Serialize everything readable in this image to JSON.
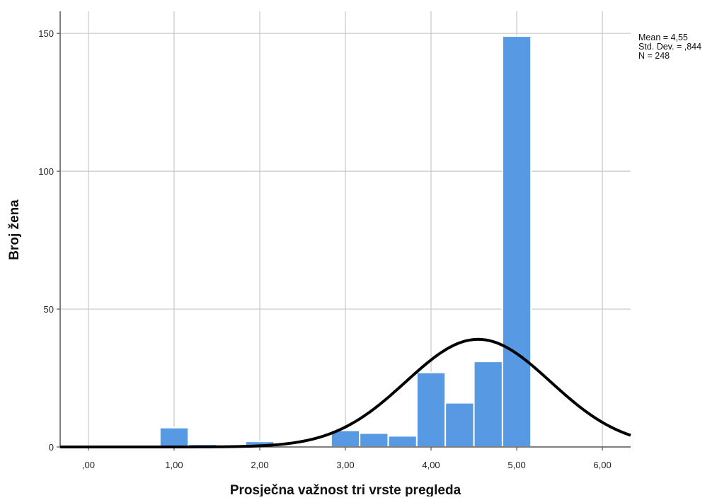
{
  "chart_data": {
    "type": "bar",
    "title": "",
    "xlabel": "Prosječna važnost tri vrste pregleda",
    "ylabel": "Broj žena",
    "x_ticks": [
      ",00",
      "1,00",
      "2,00",
      "3,00",
      "4,00",
      "5,00",
      "6,00"
    ],
    "x_tick_values": [
      0,
      1,
      2,
      3,
      4,
      5,
      6
    ],
    "y_ticks": [
      "0",
      "50",
      "100",
      "150"
    ],
    "y_tick_values": [
      0,
      50,
      100,
      150
    ],
    "xlim": [
      -0.33,
      6.33
    ],
    "ylim": [
      0,
      158
    ],
    "grid": true,
    "bin_width": 0.333,
    "bins": [
      {
        "x": 1.0,
        "count": 7
      },
      {
        "x": 1.333,
        "count": 1
      },
      {
        "x": 2.0,
        "count": 2
      },
      {
        "x": 3.0,
        "count": 6
      },
      {
        "x": 3.333,
        "count": 5
      },
      {
        "x": 3.667,
        "count": 4
      },
      {
        "x": 4.0,
        "count": 27
      },
      {
        "x": 4.333,
        "count": 16
      },
      {
        "x": 4.667,
        "count": 31
      },
      {
        "x": 5.0,
        "count": 149
      }
    ],
    "normal_curve": {
      "mean": 4.55,
      "sd": 0.844,
      "n": 248
    },
    "bar_color": "#5899e3",
    "bar_edge_color": "#ffffff",
    "curve_color": "#000000",
    "grid_color": "#c8c8c8",
    "stats": [
      "Mean = 4,55",
      "Std. Dev. = ,844",
      "N = 248"
    ],
    "stats_placement": "top-right"
  }
}
